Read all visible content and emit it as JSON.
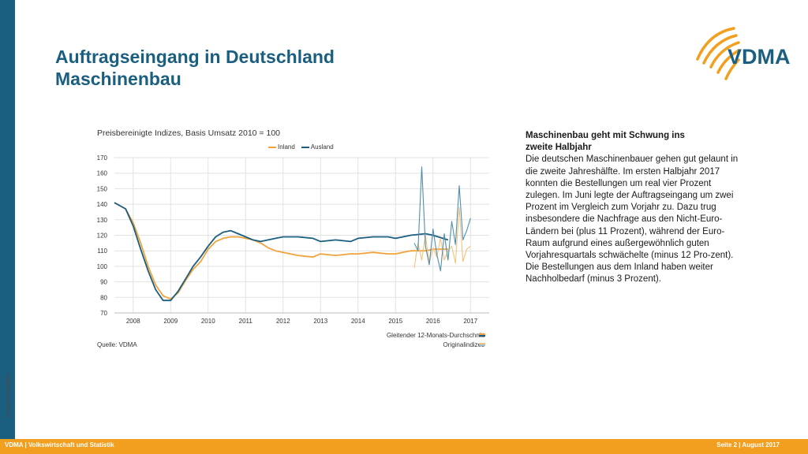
{
  "slide": {
    "title_line1": "Auftragseingang in Deutschland",
    "title_line2": "Maschinenbau",
    "side_label": "Konjunkturbulletin"
  },
  "logo": {
    "text": "VDMA",
    "icon": "vdma-arcs-logo"
  },
  "chart_header": {
    "subtitle": "Preisbereinigte Indizes, Basis Umsatz 2010 = 100",
    "source": "Quelle: VDMA",
    "note_moving_avg": "Gleitender 12-Monats-Durchschnitt",
    "note_original": "Originalindizes"
  },
  "chart_data": {
    "type": "line",
    "ylim": [
      70,
      170
    ],
    "yticks": [
      70,
      80,
      90,
      100,
      110,
      120,
      130,
      140,
      150,
      160,
      170
    ],
    "xlim": [
      2007.5,
      2017.5
    ],
    "xticks": [
      "2008",
      "2009",
      "2010",
      "2011",
      "2012",
      "2013",
      "2014",
      "2015",
      "2016",
      "2017"
    ],
    "grid": true,
    "legend_position": "top",
    "series": [
      {
        "name": "Inland",
        "color": "#f0a33c",
        "kind": "moving-average",
        "x": [
          2007.5,
          2007.8,
          2008.0,
          2008.2,
          2008.4,
          2008.6,
          2008.8,
          2009.0,
          2009.2,
          2009.4,
          2009.6,
          2009.8,
          2010.0,
          2010.2,
          2010.4,
          2010.6,
          2010.8,
          2011.0,
          2011.2,
          2011.4,
          2011.6,
          2011.8,
          2012.0,
          2012.4,
          2012.8,
          2013.0,
          2013.4,
          2013.8,
          2014.0,
          2014.4,
          2014.8,
          2015.0,
          2015.4,
          2015.8,
          2016.0,
          2016.4
        ],
        "y": [
          141,
          137,
          128,
          115,
          100,
          88,
          81,
          79,
          83,
          91,
          98,
          103,
          111,
          116,
          118,
          119,
          119,
          118,
          117,
          115,
          112,
          110,
          109,
          107,
          106,
          108,
          107,
          108,
          108,
          109,
          108,
          108,
          110,
          110,
          111,
          111
        ]
      },
      {
        "name": "Ausland",
        "color": "#1a5e80",
        "kind": "moving-average",
        "x": [
          2007.5,
          2007.8,
          2008.0,
          2008.2,
          2008.4,
          2008.6,
          2008.8,
          2009.0,
          2009.2,
          2009.4,
          2009.6,
          2009.8,
          2010.0,
          2010.2,
          2010.4,
          2010.6,
          2010.8,
          2011.0,
          2011.2,
          2011.4,
          2011.6,
          2011.8,
          2012.0,
          2012.4,
          2012.8,
          2013.0,
          2013.4,
          2013.8,
          2014.0,
          2014.4,
          2014.8,
          2015.0,
          2015.4,
          2015.8,
          2016.0,
          2016.4
        ],
        "y": [
          141,
          137,
          126,
          111,
          97,
          85,
          78,
          78,
          84,
          92,
          100,
          106,
          113,
          119,
          122,
          123,
          121,
          119,
          117,
          116,
          117,
          118,
          119,
          119,
          118,
          116,
          117,
          116,
          118,
          119,
          119,
          118,
          120,
          121,
          120,
          117
        ]
      },
      {
        "name": "Inland Originalindex",
        "color": "#f5c27a",
        "kind": "original",
        "x": [
          2015.5,
          2015.6,
          2015.7,
          2015.8,
          2015.9,
          2016.0,
          2016.1,
          2016.2,
          2016.3,
          2016.4,
          2016.5,
          2016.6,
          2016.7,
          2016.8,
          2016.9,
          2017.0
        ],
        "y": [
          99,
          115,
          104,
          120,
          102,
          112,
          106,
          118,
          104,
          110,
          113,
          102,
          138,
          103,
          111,
          113
        ]
      },
      {
        "name": "Ausland Originalindex",
        "color": "#4f8fae",
        "kind": "original",
        "x": [
          2015.5,
          2015.6,
          2015.7,
          2015.8,
          2015.9,
          2016.0,
          2016.1,
          2016.2,
          2016.3,
          2016.4,
          2016.5,
          2016.6,
          2016.7,
          2016.8,
          2016.9,
          2017.0
        ],
        "y": [
          115,
          110,
          164,
          113,
          101,
          124,
          108,
          97,
          121,
          104,
          129,
          114,
          152,
          117,
          123,
          131
        ]
      }
    ]
  },
  "textbox": {
    "heading_line1": "Maschinenbau geht mit Schwung ins",
    "heading_line2": "zweite Halbjahr",
    "body": "Die deutschen Maschinenbauer gehen gut gelaunt in die zweite Jahreshälfte. Im ersten Halbjahr 2017 konnten die Bestellungen um real vier Prozent zulegen. Im Juni legte der Auftragseingang um zwei Prozent im Vergleich zum Vorjahr zu. Dazu trug insbesondere die Nachfrage aus den Nicht-Euro-Ländern bei (plus 11 Prozent), während der Euro-Raum aufgrund eines außergewöhnlich guten Vorjahresquartals schwächelte (minus 12 Pro-zent). Die Bestellungen aus dem Inland haben weiter Nachholbedarf (minus 3 Prozent)."
  },
  "footer": {
    "left": "VDMA   | Volkswirtschaft und Statistik",
    "right": "Seite 2 | August 2017",
    "bg_color": "#f29e1f"
  }
}
